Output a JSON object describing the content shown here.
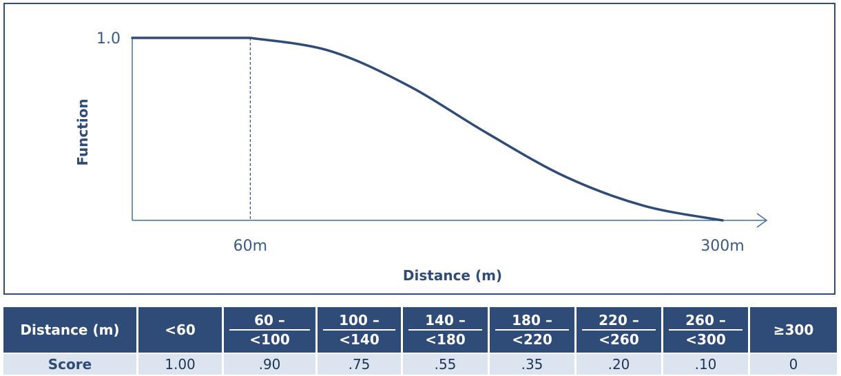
{
  "chart_data": {
    "type": "line",
    "xlabel": "Distance (m)",
    "ylabel": "Function",
    "x_ticks": [
      {
        "value": 60,
        "label": "60m"
      },
      {
        "value": 300,
        "label": "300m"
      }
    ],
    "y_ticks": [
      {
        "value": 1.0,
        "label": "1.0"
      }
    ],
    "xlim": [
      0,
      300
    ],
    "ylim": [
      0,
      1.0
    ],
    "reference_lines": [
      {
        "x": 60,
        "style": "dashed"
      }
    ],
    "series": [
      {
        "x": [
          0,
          60,
          100,
          140,
          180,
          220,
          260,
          300
        ],
        "y": [
          1.0,
          1.0,
          0.93,
          0.74,
          0.48,
          0.24,
          0.08,
          0.0
        ]
      }
    ],
    "grid": false,
    "colors": {
      "line": "#2f4b77",
      "axis": "#3f6ea8"
    }
  },
  "table": {
    "header_label": "Distance (m)",
    "row_label": "Score",
    "columns": [
      {
        "range_top": "<60",
        "range_bottom": "",
        "score": "1.00"
      },
      {
        "range_top": "60 –",
        "range_bottom": "<100",
        "score": ".90"
      },
      {
        "range_top": "100 –",
        "range_bottom": "<140",
        "score": ".75"
      },
      {
        "range_top": "140 –",
        "range_bottom": "<180",
        "score": ".55"
      },
      {
        "range_top": "180 –",
        "range_bottom": "<220",
        "score": ".35"
      },
      {
        "range_top": "220 –",
        "range_bottom": "<260",
        "score": ".20"
      },
      {
        "range_top": "260 –",
        "range_bottom": "<300",
        "score": ".10"
      },
      {
        "range_top": "≥300",
        "range_bottom": "",
        "score": "0"
      }
    ],
    "colors": {
      "header_bg": "#2f4b77",
      "row_bg": "#dce4f0"
    }
  }
}
